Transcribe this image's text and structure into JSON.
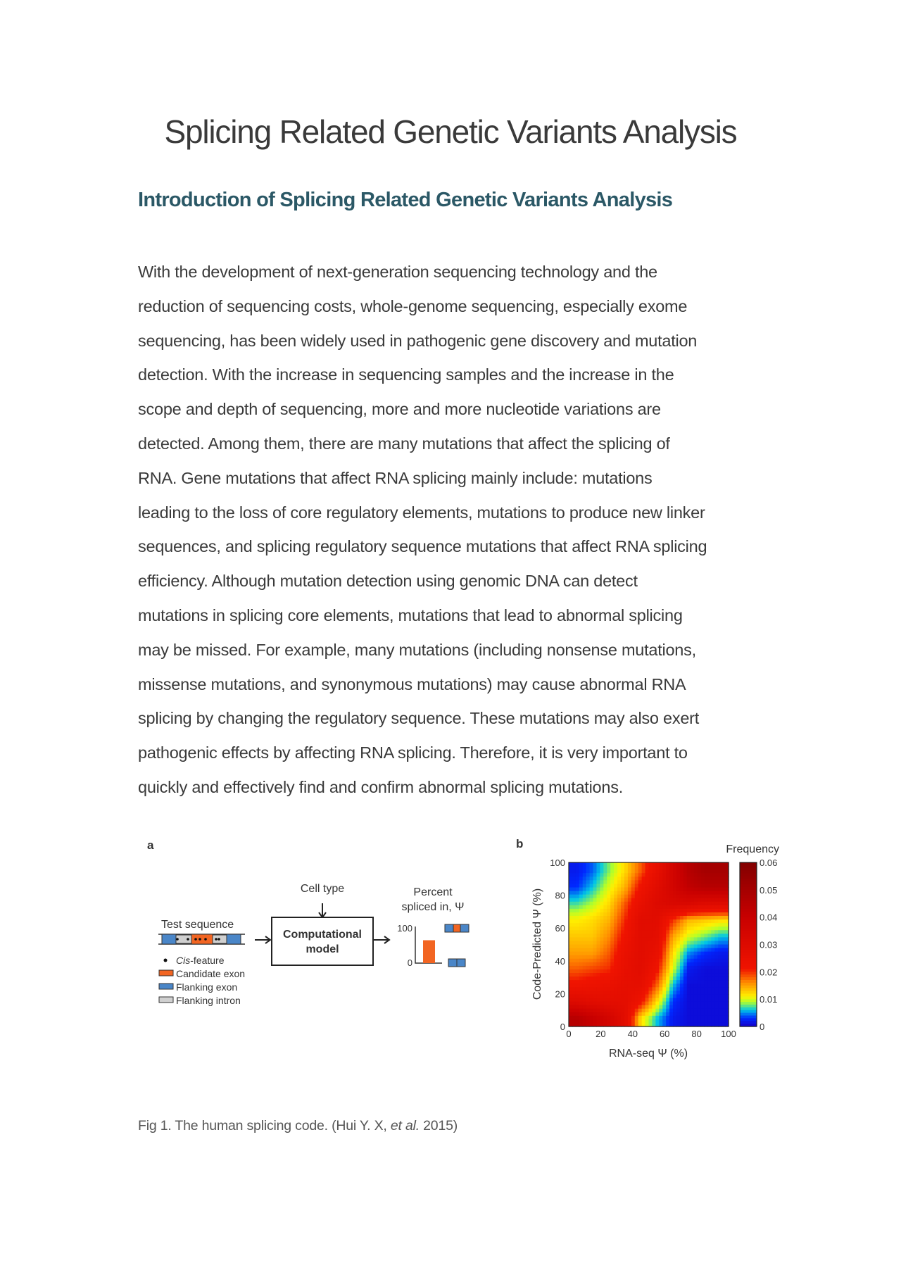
{
  "title": "Splicing Related Genetic Variants Analysis",
  "section_heading": "Introduction of Splicing Related Genetic Variants Analysis",
  "body_lines": [
    "With the development of next-generation sequencing technology and the",
    "reduction of sequencing costs, whole-genome sequencing, especially exome",
    "sequencing, has been widely used in pathogenic gene discovery and mutation",
    "detection. With the increase in sequencing samples and the increase in the",
    "scope and depth of sequencing, more and more nucleotide variations are",
    "detected. Among them, there are many mutations that affect the splicing of",
    "RNA. Gene mutations that affect RNA splicing mainly include: mutations",
    "leading to the loss of core regulatory elements, mutations to produce new linker",
    "sequences, and splicing regulatory sequence mutations that affect RNA splicing",
    "efficiency. Although mutation detection using genomic DNA can detect",
    "mutations in splicing core elements, mutations that lead to abnormal splicing",
    "may be missed. For example, many mutations (including nonsense mutations,",
    "missense mutations, and synonymous mutations) may cause abnormal RNA",
    "splicing by changing the regulatory sequence. These mutations may also exert",
    "pathogenic effects by affecting RNA splicing. Therefore, it is very important to",
    "quickly and effectively find and confirm abnormal splicing mutations."
  ],
  "figure": {
    "panel_a": {
      "label": "a",
      "test_sequence": "Test sequence",
      "cell_type": "Cell type",
      "model_line1": "Computational",
      "model_line2": "model",
      "output_line1": "Percent",
      "output_line2": "spliced in, Ψ",
      "tick_100": "100",
      "tick_0": "0",
      "psi_value_percent": 65,
      "legend": {
        "cis_italic": "Cis",
        "cis_rest": "-feature",
        "candidate": "Candidate exon",
        "flanking_exon": "Flanking exon",
        "flanking_intron": "Flanking intron"
      },
      "colors": {
        "candidate": "#f26522",
        "flanking_exon": "#4a86c8",
        "flanking_intron": "#d0d0d0"
      }
    },
    "panel_b_label": "b"
  },
  "chart_data": {
    "type": "heatmap",
    "xlabel": "RNA-seq Ψ (%)",
    "ylabel": "Code-Predicted Ψ (%)",
    "xlim": [
      0,
      100
    ],
    "ylim": [
      0,
      100
    ],
    "xticks": [
      "0",
      "20",
      "40",
      "60",
      "80",
      "100"
    ],
    "yticks": [
      "0",
      "20",
      "40",
      "60",
      "80",
      "100"
    ],
    "colorbar": {
      "title": "Frequency",
      "range": [
        0,
        0.06
      ],
      "ticks": [
        "0",
        "0.01",
        "0.02",
        "0.03",
        "0.04",
        "0.05",
        "0.06"
      ],
      "colormap": "jet"
    },
    "x_bin_centers": [
      5,
      15,
      25,
      35,
      45,
      55,
      65,
      75,
      85,
      95
    ],
    "y_bin_centers": [
      95,
      85,
      75,
      65,
      55,
      45,
      35,
      25,
      15,
      5
    ],
    "values": [
      [
        0.002,
        0.004,
        0.008,
        0.012,
        0.018,
        0.025,
        0.035,
        0.045,
        0.05,
        0.05
      ],
      [
        0.003,
        0.006,
        0.01,
        0.014,
        0.022,
        0.028,
        0.035,
        0.042,
        0.045,
        0.045
      ],
      [
        0.007,
        0.009,
        0.012,
        0.018,
        0.025,
        0.03,
        0.032,
        0.032,
        0.03,
        0.03
      ],
      [
        0.011,
        0.012,
        0.014,
        0.02,
        0.028,
        0.028,
        0.02,
        0.014,
        0.013,
        0.012
      ],
      [
        0.013,
        0.013,
        0.016,
        0.022,
        0.028,
        0.027,
        0.015,
        0.01,
        0.008,
        0.006
      ],
      [
        0.015,
        0.015,
        0.018,
        0.024,
        0.028,
        0.025,
        0.012,
        0.005,
        0.003,
        0.002
      ],
      [
        0.018,
        0.019,
        0.02,
        0.025,
        0.028,
        0.022,
        0.01,
        0.002,
        0.001,
        0.001
      ],
      [
        0.022,
        0.023,
        0.024,
        0.026,
        0.026,
        0.018,
        0.006,
        0.001,
        0.001,
        0.001
      ],
      [
        0.03,
        0.028,
        0.027,
        0.027,
        0.022,
        0.012,
        0.003,
        0.001,
        0.001,
        0.001
      ],
      [
        0.045,
        0.04,
        0.035,
        0.028,
        0.012,
        0.006,
        0.002,
        0.001,
        0.001,
        0.001
      ]
    ]
  },
  "caption": {
    "main": "Fig 1. The human splicing code. (Hui Y. X, ",
    "italic": "et al.",
    "end": " 2015)"
  }
}
